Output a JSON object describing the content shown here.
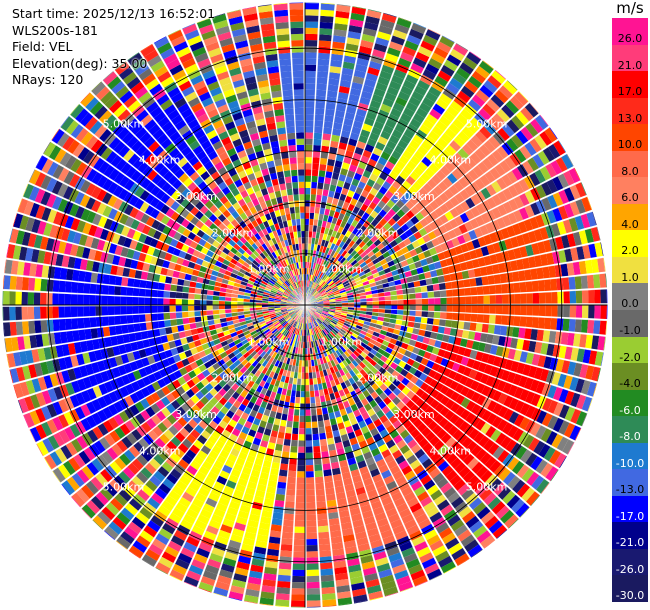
{
  "info": {
    "start_time": "Start time: 2025/12/13 16:52:01",
    "instrument": "WLS200s-181",
    "field": "Field: VEL",
    "elevation": "Elevation(deg): 35.00",
    "nrays": "NRays: 120"
  },
  "colorbar": {
    "unit": "m/s",
    "bins": [
      {
        "label": "26.0",
        "color": "#ff1493"
      },
      {
        "label": "21.0",
        "color": "#ff3c7a"
      },
      {
        "label": "17.0",
        "color": "#ff0000"
      },
      {
        "label": "13.0",
        "color": "#ff2a1a"
      },
      {
        "label": "10.0",
        "color": "#ff4500"
      },
      {
        "label": "8.0",
        "color": "#ff6a4a"
      },
      {
        "label": "6.0",
        "color": "#ff8060"
      },
      {
        "label": "4.0",
        "color": "#ffa500"
      },
      {
        "label": "2.0",
        "color": "#ffff00"
      },
      {
        "label": "1.0",
        "color": "#f0e040"
      },
      {
        "label": "0.0",
        "color": "#808080"
      },
      {
        "label": "-1.0",
        "color": "#696969"
      },
      {
        "label": "-2.0",
        "color": "#9acd32"
      },
      {
        "label": "-4.0",
        "color": "#6b8e23"
      },
      {
        "label": "-6.0",
        "color": "#228b22"
      },
      {
        "label": "-8.0",
        "color": "#2e8b57"
      },
      {
        "label": "-10.0",
        "color": "#1e7ad0"
      },
      {
        "label": "-13.0",
        "color": "#4169e1"
      },
      {
        "label": "-17.0",
        "color": "#0000ff"
      },
      {
        "label": "-21.0",
        "color": "#00008b"
      },
      {
        "label": "-26.0",
        "color": "#191970"
      },
      {
        "label": "-30.0",
        "color": "#1a1a60"
      }
    ]
  },
  "range_rings": [
    {
      "km": 1,
      "label": "1.00km"
    },
    {
      "km": 2,
      "label": "2.00km"
    },
    {
      "km": 3,
      "label": "3.00km"
    },
    {
      "km": 4,
      "label": "4.00km"
    },
    {
      "km": 5,
      "label": "5.00km"
    }
  ],
  "scan": {
    "rays": 120,
    "max_range_km": 5.9,
    "gate_km": 0.12
  }
}
